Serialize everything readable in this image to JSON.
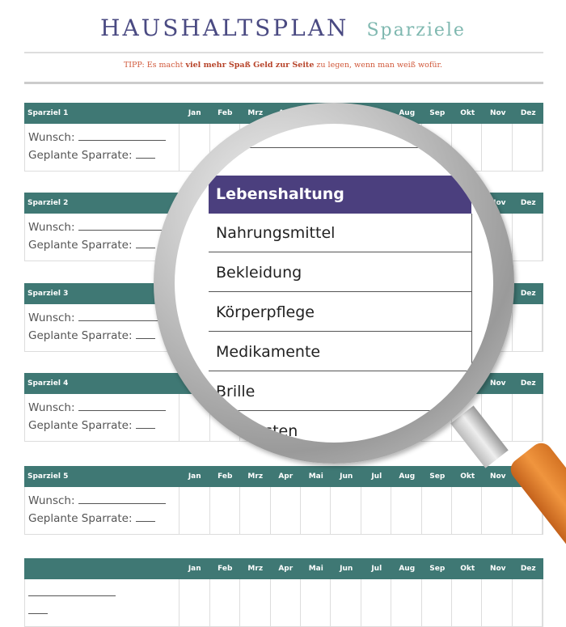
{
  "header": {
    "title": "HAUSHALTSPLAN",
    "subtitle": "Sparziele"
  },
  "tip": {
    "prefix": "TIPP: Es macht ",
    "bold": "viel mehr Spaß Geld zur Seite",
    "suffix": " zu legen, wenn man weiß wofür."
  },
  "months": [
    "Jan",
    "Feb",
    "Mrz",
    "Apr",
    "Mai",
    "Jun",
    "Jul",
    "Aug",
    "Sep",
    "Okt",
    "Nov",
    "Dez"
  ],
  "goals": [
    {
      "name": "Sparziel 1",
      "wish_label": "Wunsch:",
      "rate_label": "Geplante Sparrate:"
    },
    {
      "name": "Sparziel 2",
      "wish_label": "Wunsch:",
      "rate_label": "Geplante Sparrate:"
    },
    {
      "name": "Sparziel 3",
      "wish_label": "Wunsch:",
      "rate_label": "Geplante Sparrate:"
    },
    {
      "name": "Sparziel 4",
      "wish_label": "Wunsch:",
      "rate_label": "Geplante Sparrate:"
    },
    {
      "name": "Sparziel 5",
      "wish_label": "Wunsch:",
      "rate_label": "Geplante Sparrate:"
    },
    {
      "name": "",
      "wish_label": "",
      "rate_label": ""
    }
  ],
  "magnifier": {
    "header": "Lebenshaltung",
    "rows": [
      "Nahrungsmittel",
      "Bekleidung",
      "Körperpflege",
      "Medikamente",
      "Brille",
      "Arztkosten"
    ],
    "header_color": "#4b3f7e",
    "handle_color": "#e8862f"
  },
  "colors": {
    "goal_header": "#3f7874",
    "title": "#4a4a82",
    "subtitle": "#7fb8b0",
    "tip": "#d0583a"
  }
}
